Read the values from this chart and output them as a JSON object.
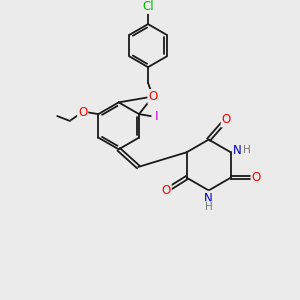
{
  "background_color": "#ebebeb",
  "bond_color": "#1a1a1a",
  "atom_colors": {
    "O": "#ff0000",
    "N": "#0000cc",
    "Cl": "#00bb00",
    "I": "#cc00cc",
    "H": "#777777",
    "C": "#1a1a1a"
  },
  "font_size": 7.5,
  "bond_width": 1.3
}
